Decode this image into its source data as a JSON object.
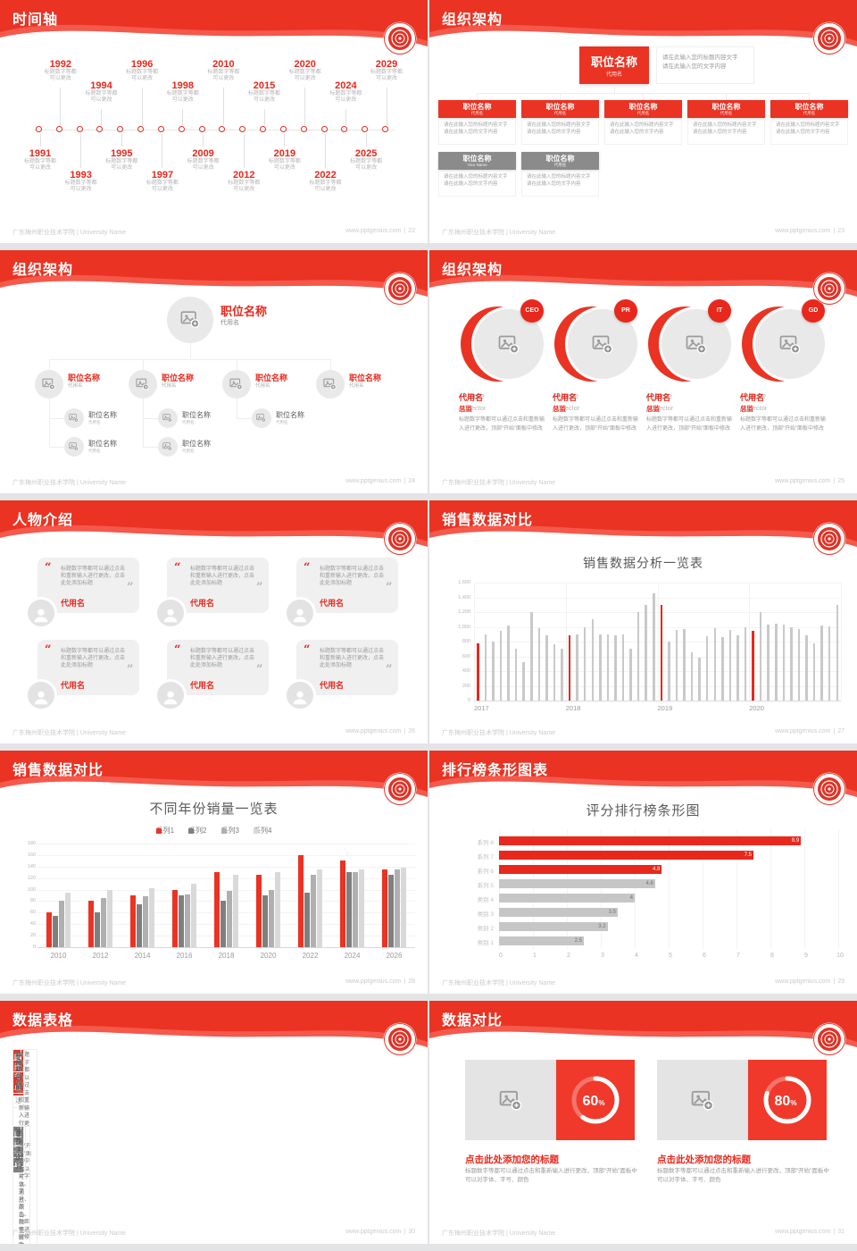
{
  "footer": {
    "left": "广东梅州职业技术学院 | University Name",
    "site": "www.pptgenius.com",
    "sep": "|"
  },
  "colors": {
    "primary": "#ea3323",
    "primary_light": "#f4594b",
    "highlight": "#e8281c",
    "gray_header": "#8b8b8b",
    "table_gray": "#7f7f7f",
    "bar_gray": "#c9c9c9",
    "hbar_gray": "#c6c6c6"
  },
  "slides": {
    "timeline": {
      "title": "时间轴",
      "page": "22",
      "years": [
        "1991",
        "1992",
        "1993",
        "1994",
        "1995",
        "1996",
        "1997",
        "1998",
        "2009",
        "2010",
        "2012",
        "2015",
        "2019",
        "2020",
        "2022",
        "2024",
        "2025",
        "2029"
      ],
      "caption": [
        "标题数字等都",
        "可以更改"
      ]
    },
    "org1": {
      "title": "组织架构",
      "page": "23",
      "root": {
        "label": "职位名称",
        "sub": "代用名"
      },
      "note": [
        "请在此输入您的标题内容文字",
        "请在此输入您的文字内容"
      ],
      "caption": [
        "请在此输入您的标题内容文字",
        "请在此输入您的文字内容"
      ],
      "children": [
        {
          "label": "职位名称",
          "sub": "代用名"
        },
        {
          "label": "职位名称",
          "sub": "代用名"
        },
        {
          "label": "职位名称",
          "sub": "代用名"
        },
        {
          "label": "职位名称",
          "sub": "代用名"
        },
        {
          "label": "职位名称",
          "sub": "代用名"
        }
      ],
      "children_gray": [
        {
          "label": "职位名称",
          "sub": "Your Name"
        },
        {
          "label": "职位名称",
          "sub": "代用名"
        }
      ]
    },
    "org2": {
      "title": "组织架构",
      "page": "24",
      "root": {
        "label": "职位名称",
        "sub": "代用名"
      },
      "branches": [
        {
          "label": "职位名称",
          "sub": "代用名",
          "subs": [
            {
              "label": "职位名称",
              "sub": "代用名"
            },
            {
              "label": "职位名称",
              "sub": "代用名"
            }
          ]
        },
        {
          "label": "职位名称",
          "sub": "代用名",
          "subs": [
            {
              "label": "职位名称",
              "sub": "代用名"
            },
            {
              "label": "职位名称",
              "sub": "代用名"
            }
          ]
        },
        {
          "label": "职位名称",
          "sub": "代用名",
          "subs": [
            {
              "label": "职位名称",
              "sub": "代用名"
            }
          ]
        },
        {
          "label": "职位名称",
          "sub": "代用名",
          "subs": []
        }
      ]
    },
    "org3": {
      "title": "组织架构",
      "page": "25",
      "profiles": [
        {
          "badge": "CEO",
          "name": "代用名",
          "name_en": "Name",
          "role": "总监",
          "role_en": "Director",
          "desc": "标题数字等都可以通过点击和重新输入进行更改，顶部“开始”面板中修改"
        },
        {
          "badge": "PR",
          "name": "代用名",
          "name_en": "Name",
          "role": "总监",
          "role_en": "Director",
          "desc": "标题数字等都可以通过点击和重新输入进行更改，顶部“开始”面板中修改"
        },
        {
          "badge": "IT",
          "name": "代用名",
          "name_en": "Name",
          "role": "总监",
          "role_en": "Director",
          "desc": "标题数字等都可以通过点击和重新输入进行更改，顶部“开始”面板中修改"
        },
        {
          "badge": "GD",
          "name": "代用名",
          "name_en": "Name",
          "role": "总监",
          "role_en": "Director",
          "desc": "标题数字等都可以通过点击和重新输入进行更改，顶部“开始”面板中修改"
        }
      ]
    },
    "people": {
      "title": "人物介绍",
      "page": "26",
      "cards": [
        {
          "quote": "标题数字等都可以通过点击和重新输入进行更改，点击此处添加标题",
          "name": "代用名"
        },
        {
          "quote": "标题数字等都可以通过点击和重新输入进行更改，点击此处添加标题",
          "name": "代用名"
        },
        {
          "quote": "标题数字等都可以通过点击和重新输入进行更改，点击此处添加标题",
          "name": "代用名"
        },
        {
          "quote": "标题数字等都可以通过点击和重新输入进行更改，点击此处添加标题",
          "name": "代用名"
        },
        {
          "quote": "标题数字等都可以通过点击和重新输入进行更改，点击此处添加标题",
          "name": "代用名"
        },
        {
          "quote": "标题数字等都可以通过点击和重新输入进行更改，点击此处添加标题",
          "name": "代用名"
        }
      ]
    },
    "sales1": {
      "title": "销售数据对比",
      "page": "27"
    },
    "sales2": {
      "title": "销售数据对比",
      "page": "28"
    },
    "ranking": {
      "title": "排行榜条形图表",
      "page": "29"
    },
    "tables": {
      "title": "数据表格",
      "page": "30",
      "headers": [
        "序号",
        "项目",
        "行动方案",
        "负责人",
        "时间节点"
      ],
      "table1": {
        "groups": [
          {
            "project": "保有客户激活",
            "rows": [
              {
                "num": "1",
                "action": "标题数字等都可以通过点击和重新输入进行更改，顶部“开始”面板中可以对字体、字号、颜色、行距等进行修改",
                "owner": "张三",
                "time": "11月30日前"
              },
              {
                "num": "2",
                "action": "标题数字等都可以通过点击和重新输入进行更改，顶部“开始”面板中可以对字体、字号、颜色、行距等进行修改",
                "owner": "李四",
                "time": "11月15日前"
              }
            ]
          }
        ]
      },
      "table2": {
        "groups": [
          {
            "project": "服务标准",
            "rows": [
              {
                "num": "1",
                "action": "标题数字等都可以通过点击和重新输入进行更改",
                "owner": "内训师",
                "time": "即日实施"
              },
              {
                "num": "2",
                "action": "标题数字等都可以通过点击和重新输入进行更改",
                "owner": "内训师",
                "time": "11月"
              }
            ]
          },
          {
            "project": "销售技能",
            "rows": [
              {
                "num": "3",
                "action": "标题数字等都可以通过点击和重新输入进行更改",
                "owner": "内训师",
                "time": "11月"
              },
              {
                "num": "4",
                "action": "标题数字等都可以通过点击和重新输入进行更改",
                "owner": "内训师",
                "time": "至少1次/月"
              }
            ]
          }
        ]
      }
    },
    "compare": {
      "title": "数据对比",
      "page": "31",
      "cards": [
        {
          "percent": 60,
          "title": "点击此处添加您的标题",
          "desc": "标题数字等都可以通过点击和重新输入进行更改，顶部“开始”面板中可以对字体、字号、颜色"
        },
        {
          "percent": 80,
          "title": "点击此处添加您的标题",
          "desc": "标题数字等都可以通过点击和重新输入进行更改，顶部“开始”面板中可以对字体、字号、颜色"
        }
      ]
    }
  },
  "chart_data": [
    {
      "type": "bar",
      "title": "销售数据分析一览表",
      "x_groups": [
        "2017",
        "2018",
        "2019",
        "2020"
      ],
      "values": [
        780,
        900,
        800,
        950,
        1020,
        700,
        520,
        1200,
        980,
        890,
        760,
        700,
        890,
        900,
        1000,
        1100,
        900,
        900,
        880,
        900,
        700,
        1200,
        1300,
        1450,
        1300,
        800,
        960,
        970,
        660,
        580,
        870,
        980,
        860,
        960,
        890,
        990,
        950,
        1200,
        1030,
        1040,
        1030,
        990,
        970,
        890,
        780,
        1020,
        1010,
        1300
      ],
      "red_indices": [
        0,
        12,
        24,
        36
      ],
      "ylim": [
        0,
        1600
      ],
      "ytick_step": 200,
      "grid": true,
      "legend_position": "none"
    },
    {
      "type": "bar",
      "title": "不同年份销量一览表",
      "categories": [
        "2010",
        "2012",
        "2014",
        "2016",
        "2018",
        "2020",
        "2022",
        "2024",
        "2026"
      ],
      "series": [
        {
          "name": "系列1",
          "color": "#ea3323",
          "values": [
            60,
            80,
            90,
            100,
            130,
            125,
            160,
            150,
            135
          ]
        },
        {
          "name": "系列2",
          "color": "#7f7f7f",
          "values": [
            55,
            60,
            75,
            90,
            80,
            90,
            95,
            130,
            125
          ]
        },
        {
          "name": "系列3",
          "color": "#b0b0b0",
          "values": [
            80,
            85,
            88,
            92,
            98,
            100,
            125,
            130,
            135
          ]
        },
        {
          "name": "系列4",
          "color": "#d9d9d9",
          "values": [
            95,
            100,
            102,
            110,
            125,
            130,
            135,
            135,
            138
          ]
        }
      ],
      "ylim": [
        0,
        180
      ],
      "ytick_step": 20,
      "grid": true,
      "legend_position": "top"
    },
    {
      "type": "bar",
      "orientation": "horizontal",
      "title": "评分排行榜条形图",
      "categories": [
        "系列 8",
        "系列 7",
        "系列 6",
        "系列 5",
        "类别 4",
        "类别 3",
        "类别 2",
        "类别 1"
      ],
      "values": [
        8.9,
        7.5,
        4.8,
        4.6,
        4,
        3.5,
        3.2,
        2.5
      ],
      "value_labels": [
        "8.9",
        "7.5",
        "4.8",
        "4.6",
        "4",
        "3.5",
        "3.2",
        "2.5"
      ],
      "bar_styles": [
        "red",
        "red",
        "red",
        "gray",
        "gray",
        "gray",
        "gray",
        "gray"
      ],
      "xlim": [
        0,
        10
      ],
      "xtick_step": 1,
      "grid": true,
      "legend_position": "none"
    }
  ]
}
